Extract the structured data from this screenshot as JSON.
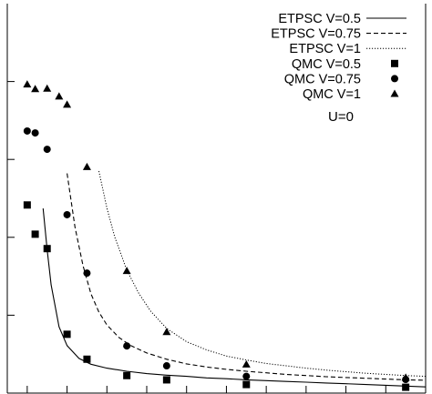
{
  "chart_data": {
    "type": "line",
    "title": "",
    "xlabel": "",
    "ylabel": "",
    "xlim": [
      -0.05,
      1.0
    ],
    "ylim": [
      0,
      1
    ],
    "grid": false,
    "legend_position": "top-right",
    "annotation": "U=0",
    "series": [
      {
        "name": "ETPSC V=0.5",
        "kind": "line",
        "style": "solid",
        "x": [
          0.04,
          0.05,
          0.06,
          0.08,
          0.1,
          0.13,
          0.16,
          0.2,
          0.25,
          0.3,
          0.35,
          0.4,
          0.45,
          0.5,
          0.55,
          0.6,
          0.65,
          0.7,
          0.75,
          0.8,
          0.85,
          0.9,
          0.95,
          1.0
        ],
        "values": [
          0.474,
          0.369,
          0.278,
          0.17,
          0.122,
          0.089,
          0.074,
          0.064,
          0.056,
          0.05,
          0.046,
          0.043,
          0.039,
          0.037,
          0.034,
          0.032,
          0.03,
          0.028,
          0.026,
          0.024,
          0.022,
          0.02,
          0.018,
          0.016
        ]
      },
      {
        "name": "ETPSC V=0.75",
        "kind": "line",
        "style": "dashed",
        "x": [
          0.1,
          0.12,
          0.14,
          0.16,
          0.18,
          0.2,
          0.23,
          0.26,
          0.3,
          0.35,
          0.4,
          0.45,
          0.5,
          0.55,
          0.6,
          0.65,
          0.7,
          0.75,
          0.8,
          0.85,
          0.9,
          0.95,
          1.0
        ],
        "values": [
          0.564,
          0.426,
          0.327,
          0.255,
          0.208,
          0.175,
          0.143,
          0.122,
          0.103,
          0.087,
          0.075,
          0.067,
          0.061,
          0.056,
          0.052,
          0.048,
          0.045,
          0.042,
          0.04,
          0.038,
          0.036,
          0.034,
          0.033
        ]
      },
      {
        "name": "ETPSC V=1",
        "kind": "line",
        "style": "dotted",
        "x": [
          0.18,
          0.2,
          0.22,
          0.25,
          0.28,
          0.31,
          0.35,
          0.4,
          0.45,
          0.5,
          0.55,
          0.6,
          0.65,
          0.7,
          0.75,
          0.8,
          0.85,
          0.9,
          0.95,
          1.0
        ],
        "values": [
          0.57,
          0.475,
          0.4,
          0.316,
          0.256,
          0.21,
          0.166,
          0.132,
          0.111,
          0.095,
          0.085,
          0.076,
          0.07,
          0.064,
          0.059,
          0.055,
          0.051,
          0.048,
          0.045,
          0.043
        ]
      },
      {
        "name": "QMC V=0.5",
        "kind": "scatter",
        "marker": "square",
        "x": [
          0.0,
          0.02,
          0.05,
          0.1,
          0.15,
          0.25,
          0.35,
          0.55,
          0.95
        ],
        "values": [
          0.483,
          0.408,
          0.371,
          0.151,
          0.087,
          0.045,
          0.034,
          0.022,
          0.015
        ]
      },
      {
        "name": "QMC V=0.75",
        "kind": "scatter",
        "marker": "circle",
        "x": [
          0.0,
          0.02,
          0.05,
          0.1,
          0.15,
          0.25,
          0.35,
          0.55,
          0.95
        ],
        "values": [
          0.673,
          0.668,
          0.626,
          0.458,
          0.308,
          0.121,
          0.07,
          0.043,
          0.035
        ]
      },
      {
        "name": "QMC V=1",
        "kind": "scatter",
        "marker": "triangle",
        "x": [
          0.0,
          0.02,
          0.05,
          0.08,
          0.1,
          0.15,
          0.25,
          0.35,
          0.55,
          0.95
        ],
        "values": [
          0.793,
          0.781,
          0.782,
          0.762,
          0.741,
          0.581,
          0.314,
          0.157,
          0.074,
          0.04
        ]
      }
    ]
  }
}
